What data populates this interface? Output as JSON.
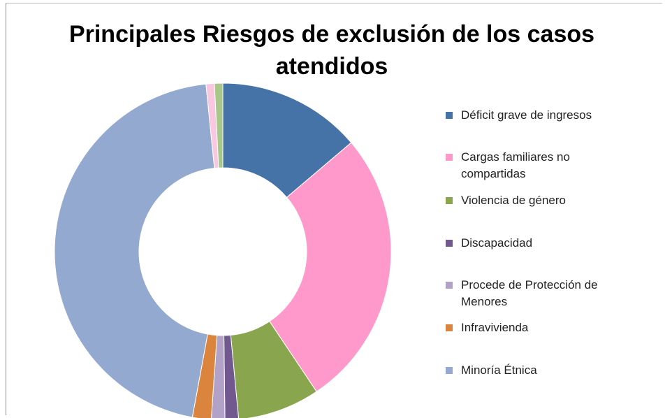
{
  "chart_data": {
    "type": "donut",
    "title": "Principales Riesgos de exclusión de los casos atendidos",
    "categories": [
      "Déficit grave de ingresos",
      "Cargas familiares no compartidas",
      "Violencia de género",
      "Discapacidad",
      "Procede de Protección de Menores",
      "Infravivienda",
      "Minoría Étnica",
      null,
      null
    ],
    "values": [
      13.8,
      26.8,
      7.9,
      1.3,
      1.3,
      1.8,
      45.5,
      0.8,
      0.8
    ],
    "colors": [
      "#4572a7",
      "#ff99cc",
      "#89a54e",
      "#71588f",
      "#b3a2c7",
      "#db843d",
      "#93a9cf",
      "#f9c8e0",
      "#a9c78a"
    ],
    "legend": "right"
  }
}
